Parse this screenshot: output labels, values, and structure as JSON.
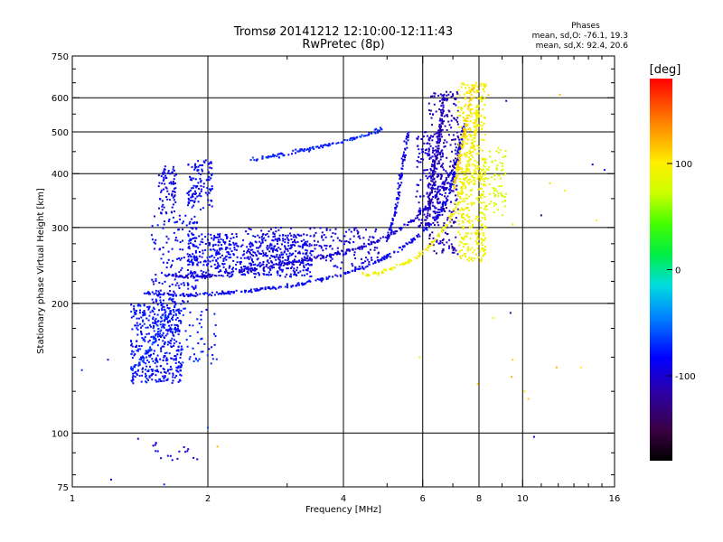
{
  "chart_data": {
    "type": "scatter",
    "title": "Tromsø 20141212 12:10:00-12:11:43",
    "subtitle": "RwPretec (8p)",
    "xlabel": "Frequency [MHz]",
    "ylabel": "Stationary phase Virtual Height [km]",
    "x_scale": "log",
    "y_scale": "log",
    "xlim": [
      1,
      16
    ],
    "ylim": [
      75,
      750
    ],
    "x_ticks": [
      {
        "value": 1,
        "label": "1"
      },
      {
        "value": 2,
        "label": "2"
      },
      {
        "value": 4,
        "label": "4"
      },
      {
        "value": 6,
        "label": "6"
      },
      {
        "value": 8,
        "label": "8"
      },
      {
        "value": 10,
        "label": "10"
      },
      {
        "value": 16,
        "label": "16"
      }
    ],
    "x_gridlines": [
      2,
      4,
      6,
      8,
      10
    ],
    "y_ticks": [
      {
        "value": 75,
        "label": "75"
      },
      {
        "value": 100,
        "label": "100"
      },
      {
        "value": 200,
        "label": "200"
      },
      {
        "value": 300,
        "label": "300"
      },
      {
        "value": 400,
        "label": "400"
      },
      {
        "value": 500,
        "label": "500"
      },
      {
        "value": 600,
        "label": "600"
      },
      {
        "value": 750,
        "label": "750"
      }
    ],
    "y_gridlines": [
      100,
      200,
      300,
      400,
      500,
      600
    ],
    "grid": true,
    "phases_legend": {
      "title": "Phases",
      "line_o": "mean, sd,O: -76.1, 19.3",
      "line_x": "mean, sd,X:  92.4, 20.6"
    },
    "colorbar": {
      "label": "[deg]",
      "range": [
        -180,
        180
      ],
      "ticks": [
        {
          "value": 100,
          "label": "100"
        },
        {
          "value": 0,
          "label": "0"
        },
        {
          "value": -100,
          "label": "-100"
        }
      ]
    },
    "traces": [
      {
        "x": [
          4.4,
          4.8,
          5.2,
          5.6,
          6.0,
          6.4,
          6.8,
          7.2,
          7.5,
          7.8,
          8.0
        ],
        "y": [
          232,
          236,
          242,
          250,
          262,
          280,
          305,
          345,
          400,
          480,
          600
        ],
        "phase": 95
      },
      {
        "x": [
          1.45,
          1.55,
          1.7,
          2.0,
          2.5,
          3.0,
          3.5,
          4.0,
          4.5,
          5.0,
          5.5,
          6.0,
          6.5,
          6.8,
          7.0,
          7.2,
          7.4
        ],
        "y": [
          212,
          210,
          209,
          210,
          214,
          219,
          226,
          234,
          244,
          256,
          272,
          292,
          320,
          350,
          390,
          440,
          520
        ],
        "phase": -85
      },
      {
        "x": [
          1.6,
          1.9,
          2.3,
          2.8,
          3.3,
          3.8,
          4.3,
          4.8,
          5.3,
          5.8,
          6.2,
          6.6,
          7.0,
          7.3
        ],
        "y": [
          232,
          230,
          236,
          244,
          252,
          260,
          268,
          280,
          295,
          315,
          340,
          370,
          410,
          470
        ],
        "phase": -100
      },
      {
        "x": [
          5.0,
          5.2,
          5.3,
          5.4,
          5.5,
          5.55
        ],
        "y": [
          280,
          320,
          360,
          410,
          460,
          500
        ],
        "phase": -90
      },
      {
        "x": [
          6.1,
          6.3,
          6.45,
          6.6,
          6.7
        ],
        "y": [
          300,
          380,
          450,
          530,
          620
        ],
        "phase": -110
      },
      {
        "x": [
          7.0,
          7.2,
          7.4,
          7.6,
          7.8
        ],
        "y": [
          360,
          420,
          490,
          560,
          640
        ],
        "phase": 110
      },
      {
        "x": [
          2.5,
          3.0,
          3.5,
          4.0,
          4.5,
          4.9
        ],
        "y": [
          430,
          445,
          460,
          475,
          490,
          510
        ],
        "phase": -75
      },
      {
        "x": [
          1.35,
          1.4,
          1.45,
          1.5,
          1.55,
          1.6,
          1.65
        ],
        "y": [
          140,
          145,
          150,
          160,
          170,
          180,
          195
        ],
        "phase": -70
      }
    ],
    "clusters": [
      {
        "x": [
          1.35,
          1.75
        ],
        "y": [
          130,
          200
        ],
        "phase": -80,
        "n": 420
      },
      {
        "x": [
          1.5,
          1.9
        ],
        "y": [
          200,
          320
        ],
        "phase": -85,
        "n": 160
      },
      {
        "x": [
          1.55,
          1.7
        ],
        "y": [
          320,
          420
        ],
        "phase": -90,
        "n": 80
      },
      {
        "x": [
          1.8,
          2.05
        ],
        "y": [
          330,
          430
        ],
        "phase": -85,
        "n": 110
      },
      {
        "x": [
          1.6,
          2.1
        ],
        "y": [
          145,
          195
        ],
        "phase": -75,
        "n": 70
      },
      {
        "x": [
          1.8,
          3.4
        ],
        "y": [
          230,
          290
        ],
        "phase": -85,
        "n": 500
      },
      {
        "x": [
          2.4,
          4.8
        ],
        "y": [
          240,
          300
        ],
        "phase": -95,
        "n": 260
      },
      {
        "x": [
          6.2,
          7.2
        ],
        "y": [
          260,
          620
        ],
        "phase": -110,
        "n": 300
      },
      {
        "x": [
          5.8,
          6.7
        ],
        "y": [
          300,
          500
        ],
        "phase": -100,
        "n": 150
      },
      {
        "x": [
          7.2,
          8.3
        ],
        "y": [
          250,
          650
        ],
        "phase": 95,
        "n": 420
      },
      {
        "x": [
          8.0,
          9.2
        ],
        "y": [
          320,
          460
        ],
        "phase": 80,
        "n": 90
      },
      {
        "x": [
          1.5,
          1.9
        ],
        "y": [
          86,
          95
        ],
        "phase": -95,
        "n": 18
      }
    ],
    "outliers": [
      {
        "x": 1.05,
        "y": 140,
        "phase": -70
      },
      {
        "x": 1.2,
        "y": 148,
        "phase": -80
      },
      {
        "x": 1.22,
        "y": 78,
        "phase": -90
      },
      {
        "x": 1.4,
        "y": 97,
        "phase": -85
      },
      {
        "x": 1.6,
        "y": 76,
        "phase": -70
      },
      {
        "x": 2.0,
        "y": 103,
        "phase": -60
      },
      {
        "x": 2.1,
        "y": 93,
        "phase": 120
      },
      {
        "x": 5.9,
        "y": 150,
        "phase": 100
      },
      {
        "x": 8.6,
        "y": 185,
        "phase": 90
      },
      {
        "x": 9.4,
        "y": 190,
        "phase": -120
      },
      {
        "x": 9.5,
        "y": 148,
        "phase": 110
      },
      {
        "x": 9.45,
        "y": 135,
        "phase": 120
      },
      {
        "x": 9.2,
        "y": 590,
        "phase": -90
      },
      {
        "x": 9.5,
        "y": 305,
        "phase": 100
      },
      {
        "x": 10.1,
        "y": 125,
        "phase": 100
      },
      {
        "x": 10.3,
        "y": 120,
        "phase": 110
      },
      {
        "x": 10.6,
        "y": 98,
        "phase": -100
      },
      {
        "x": 11.0,
        "y": 320,
        "phase": -120
      },
      {
        "x": 12.1,
        "y": 610,
        "phase": 120
      },
      {
        "x": 11.9,
        "y": 142,
        "phase": 120
      },
      {
        "x": 12.4,
        "y": 365,
        "phase": 100
      },
      {
        "x": 11.5,
        "y": 380,
        "phase": 110
      },
      {
        "x": 13.5,
        "y": 142,
        "phase": 100
      },
      {
        "x": 14.3,
        "y": 420,
        "phase": -90
      },
      {
        "x": 14.6,
        "y": 312,
        "phase": 100
      },
      {
        "x": 15.2,
        "y": 408,
        "phase": -80
      },
      {
        "x": 7.95,
        "y": 130,
        "phase": 110
      },
      {
        "x": 8.4,
        "y": 610,
        "phase": 110
      }
    ]
  }
}
